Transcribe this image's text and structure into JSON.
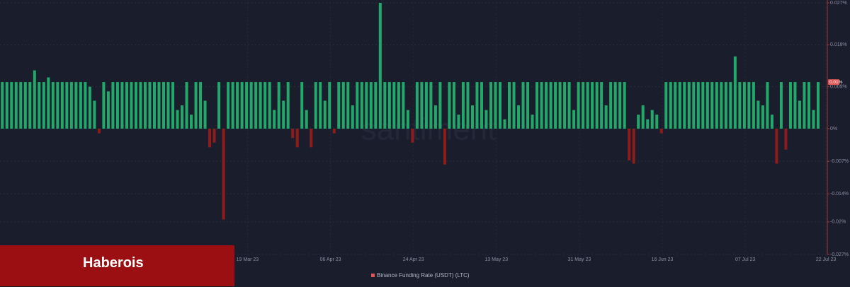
{
  "chart_data": {
    "type": "bar",
    "watermark": "santiment",
    "legend": "Binance Funding Rate (USDT) (LTC)",
    "legend_color": "#e05555",
    "positive_color": "#22a86a",
    "negative_color": "#8e1c1c",
    "ylim": [
      -0.027,
      0.027
    ],
    "yticks": [
      {
        "value": -0.027,
        "label": "-0.027%"
      },
      {
        "value": -0.02,
        "label": "-0.02%"
      },
      {
        "value": -0.014,
        "label": "-0.014%"
      },
      {
        "value": -0.007,
        "label": "-0.007%"
      },
      {
        "value": 0,
        "label": "0%"
      },
      {
        "value": 0.009,
        "label": "0.009%"
      },
      {
        "value": 0.018,
        "label": "0.018%"
      },
      {
        "value": 0.027,
        "label": "0.027%"
      }
    ],
    "last_value": {
      "value": 0.01,
      "label": "0.01%"
    },
    "xlim": [
      0,
      179.5
    ],
    "xticks": [
      {
        "value": 53.7,
        "label": "19 Mar 23"
      },
      {
        "value": 71.7,
        "label": "06 Apr 23"
      },
      {
        "value": 89.7,
        "label": "24 Apr 23"
      },
      {
        "value": 107.7,
        "label": "13 May 23"
      },
      {
        "value": 125.7,
        "label": "31 May 23"
      },
      {
        "value": 143.7,
        "label": "16 Jun 23"
      },
      {
        "value": 161.7,
        "label": "07 Jul 23"
      },
      {
        "value": 179.2,
        "label": "22 Jul 23"
      }
    ],
    "grid": true,
    "values": [
      0.01,
      0.01,
      0.01,
      0.01,
      0.01,
      0.01,
      0.01,
      0.0125,
      0.01,
      0.01,
      0.011,
      0.01,
      0.01,
      0.01,
      0.01,
      0.01,
      0.01,
      0.01,
      0.01,
      0.009,
      0.006,
      -0.001,
      0.01,
      0.008,
      0.01,
      0.01,
      0.01,
      0.01,
      0.01,
      0.01,
      0.01,
      0.01,
      0.01,
      0.01,
      0.01,
      0.01,
      0.01,
      0.01,
      0.004,
      0.005,
      0.01,
      0.003,
      0.01,
      0.01,
      0.006,
      -0.004,
      -0.003,
      0.01,
      -0.0195,
      0.01,
      0.01,
      0.01,
      0.01,
      0.01,
      0.01,
      0.01,
      0.01,
      0.01,
      0.01,
      0.004,
      0.01,
      0.006,
      0.01,
      -0.002,
      -0.004,
      0.01,
      0.004,
      -0.004,
      0.01,
      0.01,
      0.006,
      0.01,
      -0.001,
      0.01,
      0.01,
      0.01,
      0.005,
      0.01,
      0.01,
      0.01,
      0.01,
      0.01,
      0.027,
      0.01,
      0.01,
      0.01,
      0.01,
      0.01,
      0.004,
      -0.003,
      0.01,
      0.01,
      0.01,
      0.01,
      0.005,
      0.01,
      -0.0077,
      0.01,
      0.01,
      0.003,
      0.01,
      0.01,
      0.005,
      0.01,
      0.01,
      0.004,
      0.01,
      0.01,
      0.01,
      0.002,
      0.01,
      0.01,
      0.005,
      0.01,
      0.01,
      0.003,
      0.01,
      0.01,
      0.01,
      0.01,
      0.01,
      0.01,
      0.01,
      0.01,
      0.004,
      0.01,
      0.01,
      0.01,
      0.01,
      0.01,
      0.01,
      0.005,
      0.01,
      0.01,
      0.01,
      0.01,
      -0.0068,
      -0.0075,
      0.003,
      0.005,
      0.002,
      0.004,
      0.003,
      -0.001,
      0.01,
      0.01,
      0.01,
      0.01,
      0.01,
      0.01,
      0.01,
      0.01,
      0.01,
      0.01,
      0.01,
      0.01,
      0.01,
      0.01,
      0.01,
      0.0155,
      0.01,
      0.01,
      0.01,
      0.01,
      0.006,
      0.005,
      0.01,
      0.003,
      -0.0075,
      0.01,
      -0.0045,
      0.01,
      0.01,
      0.006,
      0.01,
      0.01,
      0.004,
      0.01
    ]
  },
  "banner": "Haberois"
}
